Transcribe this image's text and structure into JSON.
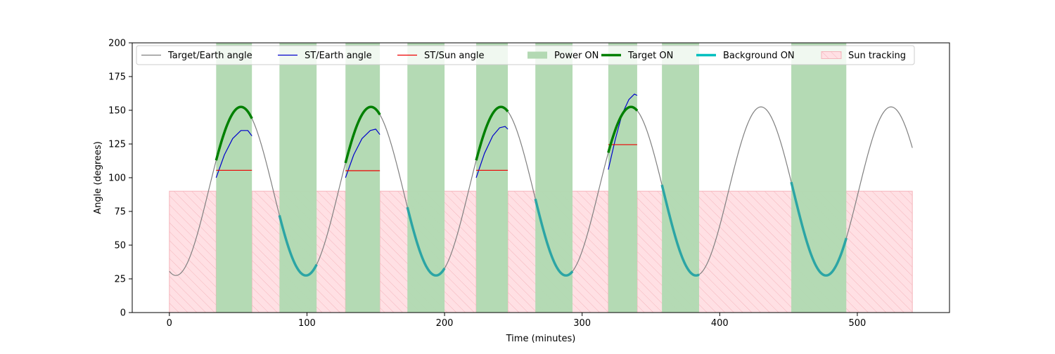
{
  "chart_data": {
    "type": "line",
    "title": "",
    "xlabel": "Time (minutes)",
    "ylabel": "Angle (degrees)",
    "xlim": [
      -27,
      567
    ],
    "ylim": [
      0,
      200
    ],
    "xticks": [
      0,
      100,
      200,
      300,
      400,
      500
    ],
    "yticks": [
      0,
      25,
      50,
      75,
      100,
      125,
      150,
      175,
      200
    ],
    "grid": false,
    "legend_position": "top",
    "colors": {
      "target_earth": "#808080",
      "st_earth": "#0000cc",
      "st_sun": "#ee0000",
      "power_on": "#b3d9b3",
      "target_on": "#008000",
      "background_on": "#2ca5a5",
      "background_on_legend": "#00bfbf",
      "sun_tracking_fill": "#ffe0e4",
      "sun_tracking_hatch": "#f4b4bb"
    },
    "legend": [
      {
        "key": "target_earth",
        "label": "Target/Earth angle",
        "kind": "line"
      },
      {
        "key": "st_earth",
        "label": "ST/Earth angle",
        "kind": "line"
      },
      {
        "key": "st_sun",
        "label": "ST/Sun angle",
        "kind": "line"
      },
      {
        "key": "power_on",
        "label": "Power ON",
        "kind": "patch"
      },
      {
        "key": "target_on",
        "label": "Target ON",
        "kind": "thick-line"
      },
      {
        "key": "background_on",
        "label": "Background ON",
        "kind": "thick-line"
      },
      {
        "key": "sun_tracking",
        "label": "Sun tracking",
        "kind": "hatch"
      }
    ],
    "target_earth_model": {
      "mean": 90,
      "amplitude": 62.5,
      "period_min": 94.5,
      "peak_time_min": 52,
      "t_start": 0,
      "t_end": 540
    },
    "power_on_intervals": [
      [
        34,
        60
      ],
      [
        80,
        107
      ],
      [
        128,
        153
      ],
      [
        173,
        200
      ],
      [
        223,
        246
      ],
      [
        266,
        293
      ],
      [
        319,
        340
      ],
      [
        358,
        385
      ],
      [
        452,
        492
      ]
    ],
    "target_on_intervals": [
      [
        34,
        60
      ],
      [
        128,
        153
      ],
      [
        223,
        246
      ],
      [
        319,
        340
      ]
    ],
    "background_on_intervals": [
      [
        80,
        107
      ],
      [
        173,
        200
      ],
      [
        266,
        293
      ],
      [
        358,
        385
      ],
      [
        452,
        492
      ]
    ],
    "sun_tracking_intervals": [
      [
        0,
        34
      ],
      [
        60,
        128
      ],
      [
        153,
        223
      ],
      [
        246,
        319
      ],
      [
        340,
        540
      ]
    ],
    "sun_tracking_level": 90,
    "st_earth_segments": [
      {
        "x": [
          34,
          40,
          46,
          52,
          57,
          60
        ],
        "y": [
          100,
          117,
          129,
          135,
          135,
          131
        ]
      },
      {
        "x": [
          128,
          134,
          140,
          146,
          150,
          153
        ],
        "y": [
          100,
          117,
          129,
          135,
          136,
          132
        ]
      },
      {
        "x": [
          223,
          229,
          235,
          240,
          244,
          246
        ],
        "y": [
          100,
          118,
          131,
          137,
          138,
          136
        ]
      },
      {
        "x": [
          319,
          324,
          329,
          334,
          338,
          340
        ],
        "y": [
          106,
          128,
          147,
          158,
          162,
          161
        ]
      }
    ],
    "st_sun_segments": [
      {
        "x": [
          34,
          60
        ],
        "y": [
          105.5,
          105.5
        ]
      },
      {
        "x": [
          128,
          153
        ],
        "y": [
          105.2,
          105.2
        ]
      },
      {
        "x": [
          223,
          246
        ],
        "y": [
          105.5,
          105.5
        ]
      },
      {
        "x": [
          319,
          340
        ],
        "y": [
          124.5,
          124.5
        ]
      }
    ]
  }
}
